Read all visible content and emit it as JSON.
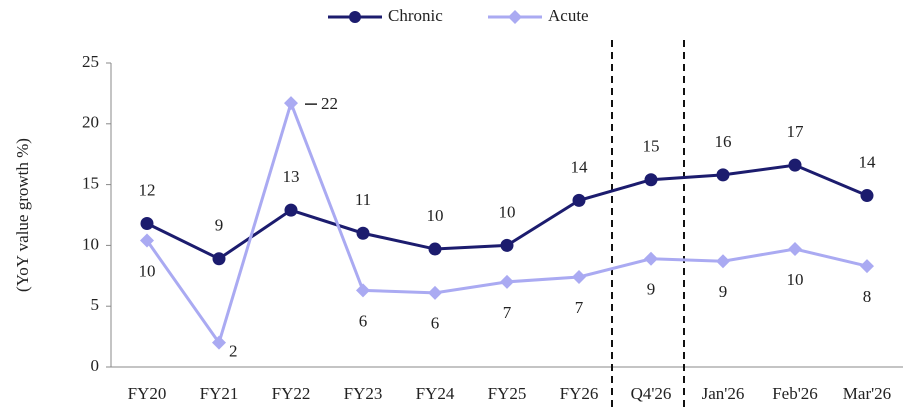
{
  "chart_data": {
    "type": "line",
    "y_label": "(YoY value growth %)",
    "categories": [
      "FY20",
      "FY21",
      "FY22",
      "FY23",
      "FY24",
      "FY25",
      "FY26",
      "Q4'26",
      "Jan'26",
      "Feb'26",
      "Mar'26"
    ],
    "series": [
      {
        "name": "Chronic",
        "color": "#1c1c6e",
        "values": [
          11.8,
          8.9,
          12.9,
          11.0,
          9.7,
          10.0,
          13.7,
          15.4,
          15.8,
          16.6,
          14.1
        ],
        "value_labels": [
          "12",
          "9",
          "13",
          "11",
          "10",
          "10",
          "14",
          "15",
          "16",
          "17",
          "14"
        ]
      },
      {
        "name": "Acute",
        "color": "#aaaaf2",
        "values": [
          10.4,
          2.0,
          21.7,
          6.3,
          6.1,
          7.0,
          7.4,
          8.9,
          8.7,
          9.7,
          8.3
        ],
        "value_labels": [
          "10",
          "2",
          "22",
          "6",
          "6",
          "7",
          "7",
          "9",
          "9",
          "10",
          "8"
        ]
      }
    ],
    "ylim": [
      0,
      25
    ],
    "yticks": [
      0,
      5,
      10,
      15,
      20,
      25
    ],
    "grid": false,
    "legend": "top"
  }
}
